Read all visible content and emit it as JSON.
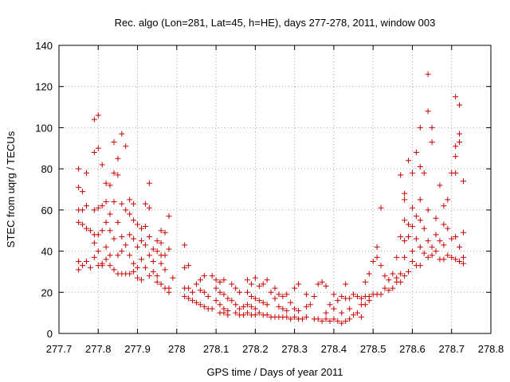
{
  "chart_data": {
    "type": "scatter",
    "title": "Rec. algo (Lon=281, Lat=45, h=HE), days 277-278, 2011, window 003",
    "xlabel": "GPS time / Days of year 2011",
    "ylabel": "STEC from uqrg / TECUs",
    "xlim": [
      277.7,
      278.8
    ],
    "ylim": [
      0,
      140
    ],
    "x_ticks": [
      277.7,
      277.8,
      277.9,
      278.0,
      278.1,
      278.2,
      278.3,
      278.4,
      278.5,
      278.6,
      278.7,
      278.8
    ],
    "x_tick_labels": [
      "277.7",
      "277.8",
      "277.9",
      "278",
      "278.1",
      "278.2",
      "278.3",
      "278.4",
      "278.5",
      "278.6",
      "278.7",
      "278.8"
    ],
    "y_ticks": [
      0,
      20,
      40,
      60,
      80,
      100,
      120,
      140
    ],
    "y_tick_labels": [
      "0",
      "20",
      "40",
      "60",
      "80",
      "100",
      "120",
      "140"
    ],
    "grid": true,
    "marker": "plus",
    "color": "#cc0000",
    "points": [
      [
        277.75,
        80
      ],
      [
        277.75,
        71
      ],
      [
        277.76,
        69
      ],
      [
        277.77,
        78
      ],
      [
        277.76,
        60
      ],
      [
        277.75,
        60
      ],
      [
        277.77,
        62
      ],
      [
        277.75,
        54
      ],
      [
        277.76,
        53
      ],
      [
        277.77,
        51
      ],
      [
        277.78,
        50
      ],
      [
        277.75,
        35
      ],
      [
        277.75,
        31
      ],
      [
        277.76,
        33
      ],
      [
        277.77,
        35
      ],
      [
        277.78,
        32
      ],
      [
        277.79,
        104
      ],
      [
        277.8,
        106
      ],
      [
        277.79,
        88
      ],
      [
        277.8,
        90
      ],
      [
        277.79,
        60
      ],
      [
        277.8,
        61
      ],
      [
        277.79,
        48
      ],
      [
        277.8,
        48
      ],
      [
        277.79,
        44
      ],
      [
        277.8,
        40
      ],
      [
        277.79,
        37
      ],
      [
        277.8,
        33
      ],
      [
        277.81,
        34
      ],
      [
        277.81,
        82
      ],
      [
        277.82,
        73
      ],
      [
        277.83,
        72
      ],
      [
        277.82,
        64
      ],
      [
        277.81,
        62
      ],
      [
        277.83,
        58
      ],
      [
        277.82,
        54
      ],
      [
        277.81,
        50
      ],
      [
        277.83,
        50
      ],
      [
        277.82,
        42
      ],
      [
        277.83,
        38
      ],
      [
        277.82,
        36
      ],
      [
        277.81,
        33
      ],
      [
        277.83,
        33
      ],
      [
        277.84,
        31
      ],
      [
        277.85,
        29
      ],
      [
        277.84,
        93
      ],
      [
        277.85,
        85
      ],
      [
        277.86,
        97
      ],
      [
        277.87,
        91
      ],
      [
        277.84,
        78
      ],
      [
        277.85,
        77
      ],
      [
        277.84,
        64
      ],
      [
        277.86,
        63
      ],
      [
        277.87,
        60
      ],
      [
        277.85,
        54
      ],
      [
        277.86,
        47
      ],
      [
        277.84,
        46
      ],
      [
        277.87,
        43
      ],
      [
        277.86,
        40
      ],
      [
        277.85,
        38
      ],
      [
        277.86,
        29
      ],
      [
        277.87,
        29
      ],
      [
        277.88,
        65
      ],
      [
        277.89,
        63
      ],
      [
        277.88,
        58
      ],
      [
        277.89,
        55
      ],
      [
        277.9,
        53
      ],
      [
        277.88,
        48
      ],
      [
        277.89,
        46
      ],
      [
        277.9,
        42
      ],
      [
        277.88,
        38
      ],
      [
        277.89,
        34
      ],
      [
        277.9,
        32
      ],
      [
        277.88,
        29
      ],
      [
        277.89,
        30
      ],
      [
        277.9,
        27
      ],
      [
        277.91,
        26
      ],
      [
        277.92,
        63
      ],
      [
        277.93,
        61
      ],
      [
        277.93,
        73
      ],
      [
        277.91,
        51
      ],
      [
        277.92,
        52
      ],
      [
        277.93,
        47
      ],
      [
        277.91,
        45
      ],
      [
        277.92,
        43
      ],
      [
        277.94,
        41
      ],
      [
        277.93,
        38
      ],
      [
        277.91,
        36
      ],
      [
        277.94,
        35
      ],
      [
        277.92,
        32
      ],
      [
        277.94,
        30
      ],
      [
        277.93,
        28
      ],
      [
        277.95,
        28
      ],
      [
        277.95,
        45
      ],
      [
        277.96,
        44
      ],
      [
        277.96,
        50
      ],
      [
        277.97,
        49
      ],
      [
        277.95,
        40
      ],
      [
        277.96,
        38
      ],
      [
        277.97,
        38
      ],
      [
        277.96,
        34
      ],
      [
        277.97,
        31
      ],
      [
        277.95,
        25
      ],
      [
        277.96,
        24
      ],
      [
        277.97,
        22
      ],
      [
        277.98,
        57
      ],
      [
        277.98,
        41
      ],
      [
        277.99,
        27
      ],
      [
        277.98,
        22
      ],
      [
        277.98,
        20
      ],
      [
        278.02,
        43
      ],
      [
        278.02,
        32
      ],
      [
        278.03,
        33
      ],
      [
        278.02,
        22
      ],
      [
        278.03,
        22
      ],
      [
        278.04,
        20
      ],
      [
        278.02,
        18
      ],
      [
        278.03,
        17
      ],
      [
        278.04,
        16
      ],
      [
        278.05,
        15
      ],
      [
        278.05,
        24
      ],
      [
        278.06,
        26
      ],
      [
        278.07,
        28
      ],
      [
        278.06,
        21
      ],
      [
        278.07,
        20
      ],
      [
        278.08,
        18
      ],
      [
        278.06,
        14
      ],
      [
        278.07,
        13
      ],
      [
        278.08,
        12
      ],
      [
        278.09,
        12
      ],
      [
        278.09,
        28
      ],
      [
        278.1,
        26
      ],
      [
        278.11,
        25
      ],
      [
        278.12,
        26
      ],
      [
        278.1,
        22
      ],
      [
        278.11,
        20
      ],
      [
        278.12,
        19
      ],
      [
        278.13,
        17
      ],
      [
        278.1,
        16
      ],
      [
        278.11,
        14
      ],
      [
        278.12,
        12
      ],
      [
        278.13,
        11
      ],
      [
        278.11,
        10
      ],
      [
        278.12,
        10
      ],
      [
        278.13,
        9
      ],
      [
        278.14,
        24
      ],
      [
        278.15,
        22
      ],
      [
        278.16,
        20
      ],
      [
        278.14,
        16
      ],
      [
        278.15,
        14
      ],
      [
        278.16,
        12
      ],
      [
        278.17,
        13
      ],
      [
        278.15,
        10
      ],
      [
        278.16,
        9
      ],
      [
        278.17,
        9
      ],
      [
        278.18,
        26
      ],
      [
        278.19,
        24
      ],
      [
        278.2,
        27
      ],
      [
        278.18,
        20
      ],
      [
        278.19,
        18
      ],
      [
        278.2,
        17
      ],
      [
        278.18,
        14
      ],
      [
        278.19,
        13
      ],
      [
        278.2,
        12
      ],
      [
        278.18,
        10
      ],
      [
        278.19,
        9
      ],
      [
        278.2,
        9
      ],
      [
        278.21,
        23
      ],
      [
        278.22,
        24
      ],
      [
        278.23,
        26
      ],
      [
        278.21,
        16
      ],
      [
        278.22,
        15
      ],
      [
        278.23,
        14
      ],
      [
        278.21,
        10
      ],
      [
        278.22,
        9
      ],
      [
        278.23,
        9
      ],
      [
        278.24,
        20
      ],
      [
        278.24,
        8
      ],
      [
        278.25,
        22
      ],
      [
        278.25,
        17
      ],
      [
        278.25,
        8
      ],
      [
        278.26,
        19
      ],
      [
        278.27,
        18
      ],
      [
        278.28,
        19
      ],
      [
        278.26,
        13
      ],
      [
        278.27,
        12
      ],
      [
        278.28,
        11
      ],
      [
        278.26,
        8
      ],
      [
        278.27,
        8
      ],
      [
        278.28,
        8
      ],
      [
        278.29,
        7
      ],
      [
        278.3,
        22
      ],
      [
        278.31,
        24
      ],
      [
        278.29,
        15
      ],
      [
        278.3,
        12
      ],
      [
        278.31,
        11
      ],
      [
        278.3,
        8
      ],
      [
        278.31,
        7
      ],
      [
        278.32,
        7
      ],
      [
        278.33,
        19
      ],
      [
        278.33,
        13
      ],
      [
        278.33,
        8
      ],
      [
        278.34,
        14
      ],
      [
        278.35,
        18
      ],
      [
        278.36,
        24
      ],
      [
        278.35,
        7
      ],
      [
        278.36,
        7
      ],
      [
        278.37,
        25
      ],
      [
        278.37,
        6
      ],
      [
        278.38,
        23
      ],
      [
        278.38,
        10
      ],
      [
        278.38,
        7
      ],
      [
        278.39,
        14
      ],
      [
        278.39,
        6
      ],
      [
        278.4,
        19
      ],
      [
        278.4,
        12
      ],
      [
        278.4,
        7
      ],
      [
        278.41,
        16
      ],
      [
        278.41,
        6
      ],
      [
        278.42,
        18
      ],
      [
        278.42,
        10
      ],
      [
        278.42,
        5
      ],
      [
        278.43,
        24
      ],
      [
        278.43,
        17
      ],
      [
        278.43,
        6
      ],
      [
        278.44,
        17
      ],
      [
        278.44,
        12
      ],
      [
        278.44,
        7
      ],
      [
        278.45,
        19
      ],
      [
        278.45,
        9
      ],
      [
        278.46,
        18
      ],
      [
        278.46,
        10
      ],
      [
        278.47,
        17
      ],
      [
        278.47,
        14
      ],
      [
        278.47,
        8
      ],
      [
        278.48,
        25
      ],
      [
        278.48,
        18
      ],
      [
        278.48,
        14
      ],
      [
        278.49,
        29
      ],
      [
        278.49,
        18
      ],
      [
        278.49,
        16
      ],
      [
        278.5,
        35
      ],
      [
        278.5,
        19
      ],
      [
        278.51,
        42
      ],
      [
        278.51,
        37
      ],
      [
        278.51,
        19
      ],
      [
        278.52,
        61
      ],
      [
        278.52,
        33
      ],
      [
        278.52,
        19
      ],
      [
        278.53,
        28
      ],
      [
        278.53,
        22
      ],
      [
        278.54,
        26
      ],
      [
        278.54,
        21
      ],
      [
        278.55,
        29
      ],
      [
        278.55,
        22
      ],
      [
        278.56,
        37
      ],
      [
        278.56,
        27
      ],
      [
        278.56,
        25
      ],
      [
        278.57,
        77
      ],
      [
        278.57,
        47
      ],
      [
        278.57,
        29
      ],
      [
        278.57,
        25
      ],
      [
        278.58,
        68
      ],
      [
        278.58,
        65
      ],
      [
        278.58,
        55
      ],
      [
        278.58,
        45
      ],
      [
        278.58,
        37
      ],
      [
        278.58,
        28
      ],
      [
        278.59,
        84
      ],
      [
        278.59,
        53
      ],
      [
        278.59,
        47
      ],
      [
        278.59,
        30
      ],
      [
        278.6,
        78
      ],
      [
        278.6,
        61
      ],
      [
        278.6,
        52
      ],
      [
        278.6,
        40
      ],
      [
        278.6,
        35
      ],
      [
        278.61,
        88
      ],
      [
        278.61,
        57
      ],
      [
        278.61,
        46
      ],
      [
        278.61,
        33
      ],
      [
        278.62,
        100
      ],
      [
        278.62,
        81
      ],
      [
        278.62,
        65
      ],
      [
        278.62,
        55
      ],
      [
        278.62,
        42
      ],
      [
        278.62,
        33
      ],
      [
        278.63,
        78
      ],
      [
        278.63,
        51
      ],
      [
        278.63,
        39
      ],
      [
        278.64,
        126
      ],
      [
        278.64,
        108
      ],
      [
        278.64,
        60
      ],
      [
        278.64,
        45
      ],
      [
        278.64,
        37
      ],
      [
        278.65,
        100
      ],
      [
        278.65,
        93
      ],
      [
        278.65,
        42
      ],
      [
        278.65,
        38
      ],
      [
        278.66,
        56
      ],
      [
        278.66,
        48
      ],
      [
        278.66,
        40
      ],
      [
        278.67,
        72
      ],
      [
        278.67,
        45
      ],
      [
        278.67,
        36
      ],
      [
        278.68,
        62
      ],
      [
        278.68,
        53
      ],
      [
        278.68,
        43
      ],
      [
        278.68,
        36
      ],
      [
        278.69,
        65
      ],
      [
        278.69,
        51
      ],
      [
        278.69,
        38
      ],
      [
        278.7,
        78
      ],
      [
        278.7,
        46
      ],
      [
        278.7,
        37
      ],
      [
        278.71,
        115
      ],
      [
        278.71,
        91
      ],
      [
        278.71,
        86
      ],
      [
        278.71,
        78
      ],
      [
        278.71,
        47
      ],
      [
        278.71,
        36
      ],
      [
        278.72,
        111
      ],
      [
        278.72,
        93
      ],
      [
        278.72,
        97
      ],
      [
        278.72,
        42
      ],
      [
        278.72,
        35
      ],
      [
        278.73,
        74
      ],
      [
        278.73,
        49
      ],
      [
        278.73,
        37
      ],
      [
        278.73,
        34
      ]
    ]
  }
}
